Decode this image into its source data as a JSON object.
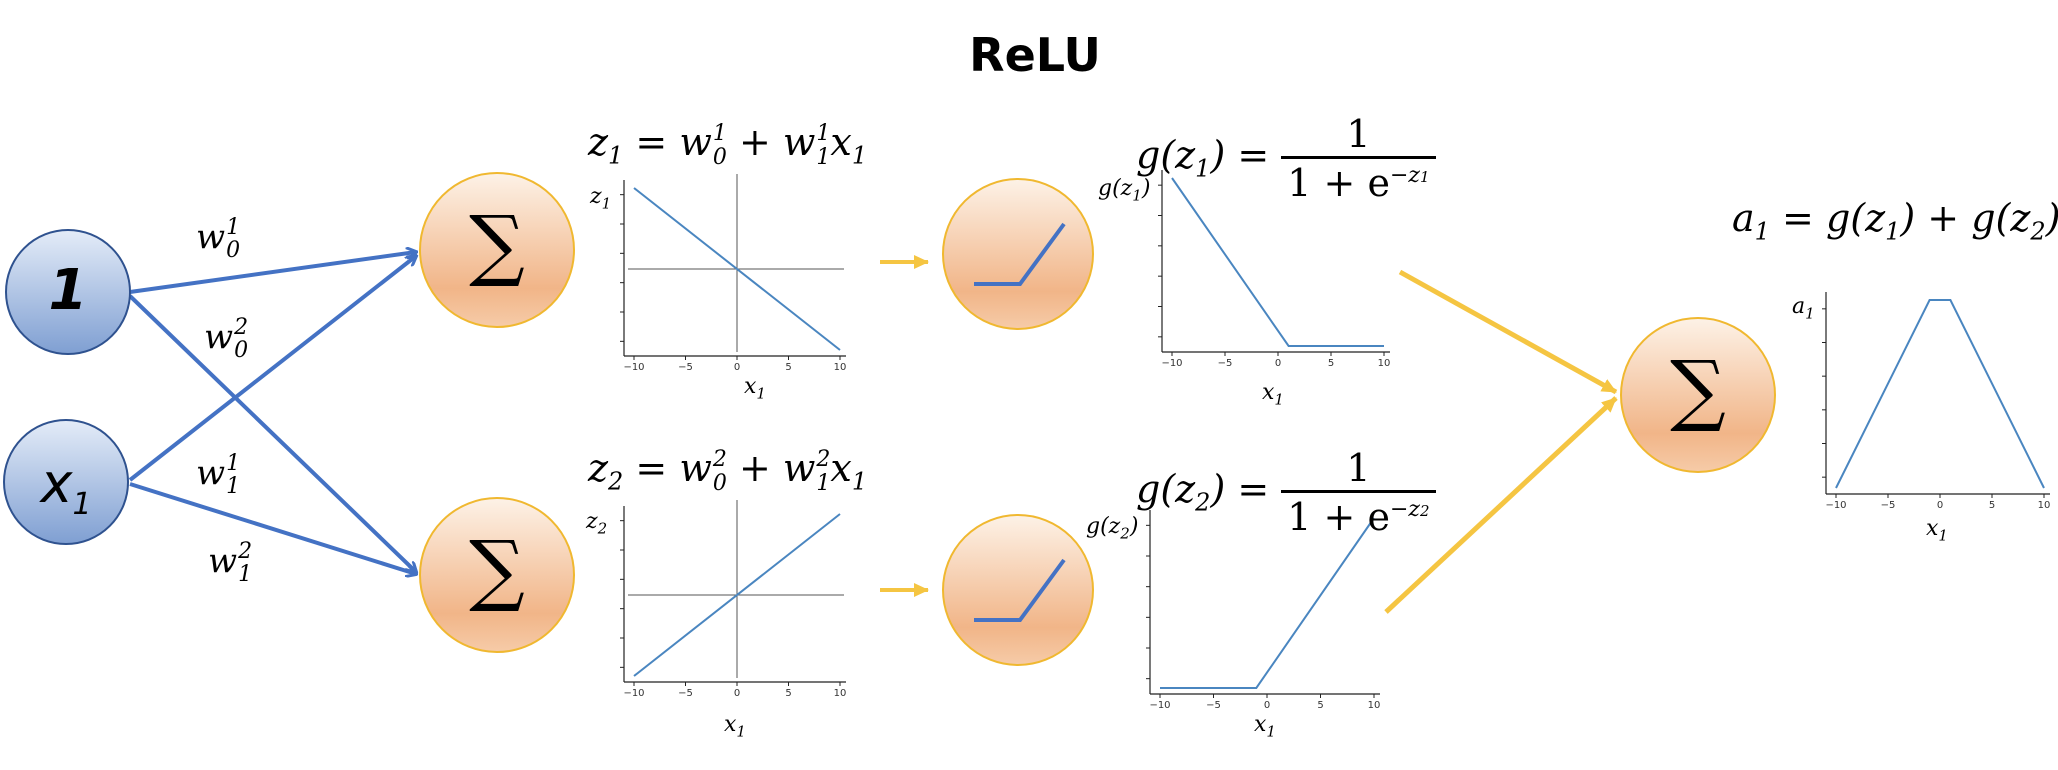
{
  "title": "ReLU",
  "inputs": {
    "bias": "1",
    "x_base": "x",
    "x_sub": "1"
  },
  "weights": {
    "w01": {
      "base": "w",
      "sup": "1",
      "sub": "0"
    },
    "w02": {
      "base": "w",
      "sup": "2",
      "sub": "0"
    },
    "w11": {
      "base": "w",
      "sup": "1",
      "sub": "1"
    },
    "w12": {
      "base": "w",
      "sup": "2",
      "sub": "1"
    }
  },
  "sum_symbol": "∑",
  "equations": {
    "z1_lhs": "z",
    "z1_lhs_sub": "1",
    "z1_rhs_a": "= w",
    "z2_lhs": "z",
    "z2_lhs_sub": "2",
    "g1_lhs": "g(z",
    "g1_lhs_sub": "1",
    "g_close": ") =",
    "g_num": "1",
    "g_den": "1 + e",
    "g1_exp": "−z",
    "g1_exp_sub": "1",
    "g2_lhs": "g(z",
    "g2_lhs_sub": "2",
    "g2_exp": "−z",
    "g2_exp_sub": "2",
    "a1_text": "a",
    "a1_sub": "1",
    "a1_rhs_1": "= g(z",
    "a1_rhs_2": ") + g(z",
    "a1_rhs_3": ")"
  },
  "plot_labels": {
    "x_label": "x",
    "x_sub": "1",
    "z1_y": "z",
    "z1_y_sub": "1",
    "z2_y": "z",
    "z2_y_sub": "2",
    "g1_y": "g(z",
    "g1_y_sub": "1",
    "g2_y": "g(z",
    "g2_y_sub": "2",
    "paren": ")",
    "a1_y": "a",
    "a1_y_sub": "1"
  },
  "ticks": [
    "−10",
    "−5",
    "0",
    "5",
    "10"
  ],
  "colors": {
    "blue_arrow": "#4472C4",
    "yellow_arrow": "#F5C542",
    "plot_line": "#4a86c0",
    "node_blue_top": "#dfe8f6",
    "node_blue_bottom": "#8aa7d6",
    "node_orange_top": "#fdf0e4",
    "node_orange_bottom": "#f0b184",
    "node_orange_border": "#f0b830"
  },
  "chart_data": [
    {
      "type": "line",
      "xlabel": "x1",
      "ylabel": "z1",
      "x": [
        -10,
        10
      ],
      "y": [
        10,
        -10
      ],
      "xlim": [
        -10,
        10
      ],
      "ylim": [
        -10,
        10
      ],
      "crosshair": true
    },
    {
      "type": "line",
      "xlabel": "x1",
      "ylabel": "z2",
      "x": [
        -10,
        10
      ],
      "y": [
        -10,
        10
      ],
      "xlim": [
        -10,
        10
      ],
      "ylim": [
        -10,
        10
      ],
      "crosshair": true
    },
    {
      "type": "line",
      "xlabel": "x1",
      "ylabel": "g(z1)",
      "x": [
        -10,
        1,
        10
      ],
      "y": [
        11,
        0,
        0
      ],
      "xlim": [
        -10,
        10
      ],
      "ylim": [
        0,
        11
      ]
    },
    {
      "type": "line",
      "xlabel": "x1",
      "ylabel": "g(z2)",
      "x": [
        -10,
        -1,
        10
      ],
      "y": [
        0,
        0,
        11
      ],
      "xlim": [
        -10,
        10
      ],
      "ylim": [
        0,
        11
      ]
    },
    {
      "type": "line",
      "xlabel": "x1",
      "ylabel": "a1",
      "x": [
        -10,
        -1,
        1,
        10
      ],
      "y": [
        0,
        9,
        9,
        0
      ],
      "xlim": [
        -10,
        10
      ],
      "ylim": [
        0,
        9
      ]
    }
  ]
}
